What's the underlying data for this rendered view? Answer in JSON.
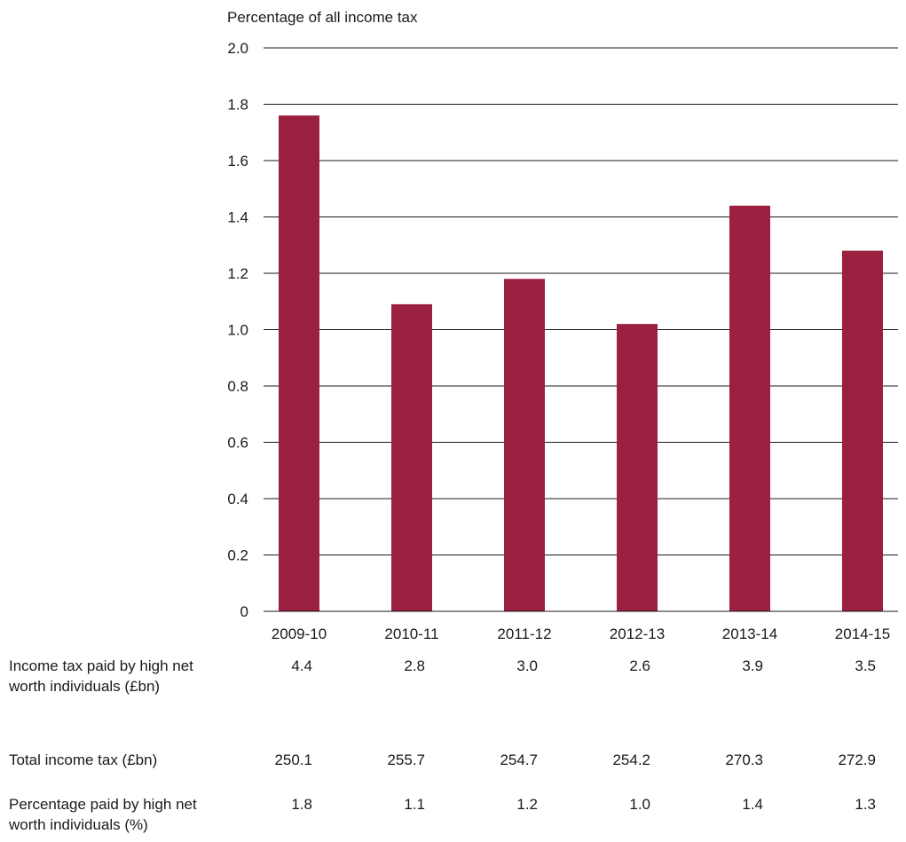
{
  "chart_data": {
    "type": "bar",
    "title": "Percentage of all income tax",
    "categories": [
      "2009-10",
      "2010-11",
      "2011-12",
      "2012-13",
      "2013-14",
      "2014-15"
    ],
    "values": [
      1.76,
      1.09,
      1.18,
      1.02,
      1.44,
      1.28
    ],
    "yticks": [
      "0",
      "0.2",
      "0.4",
      "0.6",
      "0.8",
      "1.0",
      "1.2",
      "1.4",
      "1.6",
      "1.8",
      "2.0"
    ],
    "ylim": [
      0,
      2.0
    ],
    "grid": true,
    "bar_color": "#9b1f3e"
  },
  "table": {
    "rows": [
      {
        "label": "Income tax paid by high net worth individuals (£bn)",
        "values": [
          "4.4",
          "2.8",
          "3.0",
          "2.6",
          "3.9",
          "3.5"
        ]
      },
      {
        "label": "Total income tax (£bn)",
        "values": [
          "250.1",
          "255.7",
          "254.7",
          "254.2",
          "270.3",
          "272.9"
        ]
      },
      {
        "label": "Percentage paid by high net worth individuals (%)",
        "values": [
          "1.8",
          "1.1",
          "1.2",
          "1.0",
          "1.4",
          "1.3"
        ]
      }
    ]
  }
}
